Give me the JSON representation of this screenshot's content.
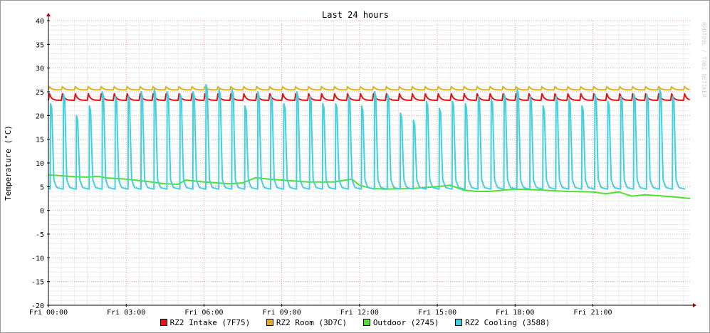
{
  "chart_data": {
    "type": "line",
    "title": "Last 24 hours",
    "ylabel": "Temperature (°C)",
    "xlabel": "",
    "watermark": "RRDTOOL / TOBI OETIKER",
    "ylim": [
      -20,
      40
    ],
    "yticks": [
      40,
      35,
      30,
      25,
      20,
      15,
      10,
      5,
      0,
      -5,
      -10,
      -15,
      -20
    ],
    "ytick_labels": [
      "40",
      "35",
      "30",
      "25",
      "20",
      "15",
      "10",
      "5",
      "0",
      "-5",
      "-10",
      "-15",
      "-20"
    ],
    "xlim": [
      0,
      24.75
    ],
    "xticks": [
      0,
      3,
      6,
      9,
      12,
      15,
      18,
      21
    ],
    "xtick_labels": [
      "Fri 00:00",
      "Fri 03:00",
      "Fri 06:00",
      "Fri 09:00",
      "Fri 12:00",
      "Fri 15:00",
      "Fri 18:00",
      "Fri 21:00"
    ],
    "grid": true,
    "legend_position": "bottom",
    "background": "#ffffff",
    "grid_color": "#e8a0a0",
    "series": [
      {
        "name": "RZ2 Intake (7F75)",
        "color": "#e81010",
        "pattern": {
          "type": "sawtooth",
          "base": 23.2,
          "peak": 24.6,
          "period_h": 0.5
        },
        "x": [
          0,
          3,
          6,
          9,
          12,
          15,
          18,
          21,
          24.75
        ],
        "values": [
          23.2,
          23.2,
          23.2,
          23.2,
          23.2,
          23.2,
          23.2,
          23.2,
          23.2
        ]
      },
      {
        "name": "RZ2 Room (3D7C)",
        "color": "#e0b020",
        "pattern": {
          "type": "sawtooth",
          "base": 25.4,
          "peak": 26.1,
          "period_h": 0.5
        },
        "x": [
          0,
          3,
          6,
          9,
          12,
          15,
          18,
          21,
          24.75
        ],
        "values": [
          25.4,
          25.4,
          25.4,
          25.4,
          25.4,
          25.4,
          25.4,
          25.4,
          25.4
        ]
      },
      {
        "name": "Outdoor (2745)",
        "color": "#50e030",
        "x": [
          0,
          0.5,
          1,
          1.5,
          1.9,
          2.3,
          3,
          3.8,
          4.5,
          5,
          5.3,
          6,
          7,
          7.5,
          8,
          8.5,
          9,
          10,
          11,
          11.7,
          12,
          12.5,
          13,
          14,
          15,
          15.5,
          16,
          16.5,
          17,
          18,
          19,
          20,
          21,
          21.5,
          22,
          22.5,
          23,
          23.5,
          24,
          24.75
        ],
        "values": [
          7.5,
          7.3,
          7.1,
          7.0,
          7.2,
          6.8,
          6.6,
          6.1,
          5.6,
          5.5,
          6.4,
          6.0,
          5.6,
          5.8,
          6.9,
          6.6,
          6.4,
          6.0,
          6.0,
          6.6,
          5.3,
          4.6,
          4.5,
          4.6,
          5.0,
          5.3,
          4.3,
          4.0,
          4.0,
          4.5,
          4.3,
          4.0,
          3.9,
          3.5,
          3.9,
          3.0,
          3.3,
          3.1,
          2.9,
          2.5
        ]
      },
      {
        "name": "RZ2 Cooling (3588)",
        "color": "#40d0e0",
        "pattern": {
          "type": "spikes",
          "base": 4.5,
          "period_h": 0.5
        },
        "x": [
          0,
          0.5,
          1,
          1.5,
          2,
          2.5,
          3,
          3.5,
          4,
          4.5,
          5,
          5.5,
          6,
          6.5,
          7,
          7.5,
          8,
          8.5,
          9,
          9.5,
          10,
          10.5,
          11,
          11.5,
          12,
          12.5,
          13,
          13.5,
          14,
          14.5,
          15,
          15.5,
          16,
          16.5,
          17,
          17.5,
          18,
          18.5,
          19,
          19.5,
          20,
          20.5,
          21,
          21.5,
          22,
          22.5,
          23,
          23.5,
          24
        ],
        "values": [
          22.5,
          24.5,
          20.0,
          22.0,
          25.0,
          24.0,
          24.0,
          25.0,
          25.5,
          25.0,
          24.5,
          25.0,
          26.5,
          25.5,
          25.5,
          22.0,
          25.0,
          24.0,
          22.5,
          25.0,
          24.0,
          22.5,
          22.5,
          24.0,
          22.0,
          25.0,
          24.5,
          20.5,
          19.0,
          23.0,
          21.5,
          23.0,
          22.5,
          24.0,
          23.5,
          24.5,
          25.5,
          24.0,
          22.0,
          24.0,
          23.5,
          22.0,
          24.5,
          23.0,
          24.0,
          24.5,
          24.5,
          25.5,
          24.0
        ]
      }
    ]
  }
}
